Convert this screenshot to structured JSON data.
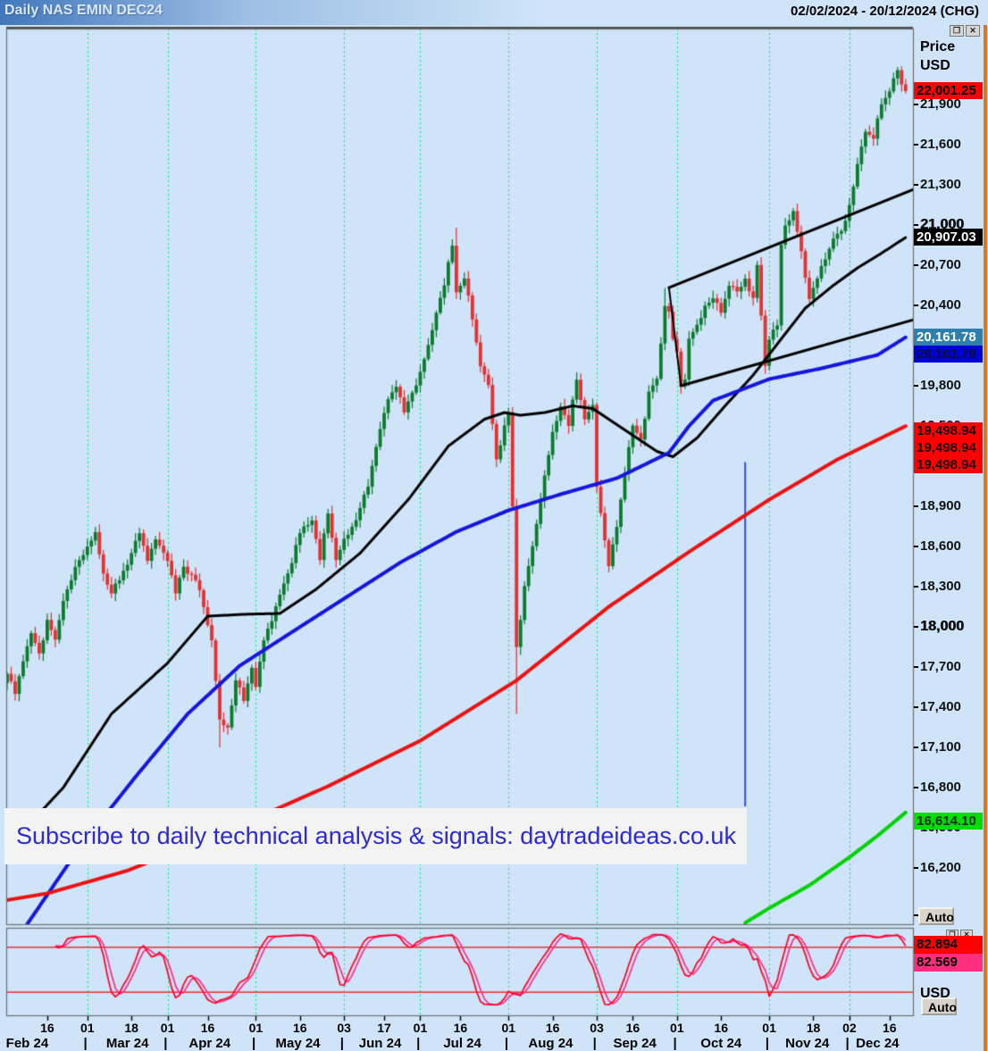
{
  "window": {
    "title": "Daily NAS EMIN DEC24",
    "date_range": "02/02/2024 - 20/12/2024 (CHG)",
    "restore_icon": "❐",
    "close_icon": "✕"
  },
  "price_axis": {
    "header_line1": "Price",
    "header_line2": "USD",
    "tick_max": 21900,
    "tick_min": 16200,
    "tick_step": 300,
    "bold_ticks": [
      21000,
      18000
    ],
    "auto_button": "Auto",
    "markers": [
      {
        "name": "last-price-label",
        "text": "22,001.25",
        "price": 22001.25,
        "bg": "#ff0000",
        "fg": "#000000",
        "dy": 0
      },
      {
        "name": "black-ma-value-label",
        "text": "20,907.03",
        "price": 20907.03,
        "bg": "#000000",
        "fg": "#ffffff",
        "dy": 0
      },
      {
        "name": "teal-value-label",
        "text": "20,161.78",
        "price": 20161.78,
        "bg": "#2d7fae",
        "fg": "#ffffff",
        "dy": 0
      },
      {
        "name": "blue-ma-value-label",
        "text": "20,161.78",
        "price": 20161.78,
        "bg": "#0000d6",
        "fg": "#0a1035",
        "dy": 19
      },
      {
        "name": "red-ma-value-label-1",
        "text": "19,498.94",
        "price": 19498.94,
        "bg": "#ff0000",
        "fg": "#200000",
        "dy": 5
      },
      {
        "name": "red-ma-value-label-2",
        "text": "19,498.94",
        "price": 19498.94,
        "bg": "#ff0000",
        "fg": "#200000",
        "dy": 24
      },
      {
        "name": "red-ma-value-label-3",
        "text": "19,498.94",
        "price": 19498.94,
        "bg": "#ff0000",
        "fg": "#200000",
        "dy": 43
      },
      {
        "name": "green-ma-value-label",
        "text": "16,614.10",
        "price": 16614.1,
        "bg": "#00dd00",
        "fg": "#003000",
        "dy": 10
      }
    ]
  },
  "stoch_axis": {
    "values": [
      {
        "name": "stoch-k-value",
        "text": "82.894",
        "bg": "#ff0000",
        "fg": "#000000"
      },
      {
        "name": "stoch-d-value",
        "text": "82.569",
        "bg": "#ff2d7d",
        "fg": "#000000"
      }
    ],
    "unit_label": "USD",
    "auto_button": "Auto"
  },
  "banner": {
    "text": "Subscribe to daily technical analysis & signals: daytradeideas.co.uk"
  },
  "x_axis": {
    "separator": "|",
    "ticks": [
      {
        "label": "16",
        "index": 10
      },
      {
        "label": "01",
        "index": 20
      },
      {
        "label": "18",
        "index": 31
      },
      {
        "label": "01",
        "index": 40
      },
      {
        "label": "16",
        "index": 50
      },
      {
        "label": "01",
        "index": 62
      },
      {
        "label": "16",
        "index": 73
      },
      {
        "label": "03",
        "index": 84
      },
      {
        "label": "17",
        "index": 94
      },
      {
        "label": "01",
        "index": 103
      },
      {
        "label": "16",
        "index": 113
      },
      {
        "label": "01",
        "index": 125
      },
      {
        "label": "16",
        "index": 136
      },
      {
        "label": "03",
        "index": 147
      },
      {
        "label": "16",
        "index": 156
      },
      {
        "label": "01",
        "index": 167
      },
      {
        "label": "16",
        "index": 178
      },
      {
        "label": "01",
        "index": 190
      },
      {
        "label": "18",
        "index": 201
      },
      {
        "label": "02",
        "index": 210
      },
      {
        "label": "16",
        "index": 220
      }
    ],
    "months": [
      {
        "label": "Feb 24",
        "index": 5
      },
      {
        "label": "Mar 24",
        "index": 30
      },
      {
        "label": "Apr 24",
        "index": 50.5
      },
      {
        "label": "May 24",
        "index": 72.5
      },
      {
        "label": "Jun 24",
        "index": 93
      },
      {
        "label": "Jul 24",
        "index": 113.5
      },
      {
        "label": "Aug 24",
        "index": 135.5
      },
      {
        "label": "Sep 24",
        "index": 156.5
      },
      {
        "label": "Oct 24",
        "index": 178
      },
      {
        "label": "Nov 24",
        "index": 199.5
      },
      {
        "label": "Dec 24",
        "index": 217
      }
    ],
    "separator_indices": [
      19.5,
      39.5,
      61.5,
      83.5,
      102.5,
      124.5,
      146.5,
      166.5,
      189.5,
      209.5
    ]
  },
  "chart_data": {
    "type": "candlestick",
    "title": "Daily NAS EMIN DEC24",
    "instrument": "NAS EMIN DEC24",
    "period": "Daily",
    "date_start": "02/02/2024",
    "date_end": "20/12/2024",
    "bars": 225,
    "ylim": [
      15780,
      22467
    ],
    "last_close": 22001.25,
    "up_color": "#0b7b2e",
    "down_color": "#e23232",
    "grid_color": "#00e57a",
    "grid_month_indices": [
      20,
      40,
      62,
      84,
      103,
      125,
      147,
      167,
      190,
      210
    ],
    "close_keypoints": [
      [
        0,
        17650
      ],
      [
        2,
        17500
      ],
      [
        4,
        17750
      ],
      [
        6,
        17950
      ],
      [
        8,
        17800
      ],
      [
        10,
        18050
      ],
      [
        12,
        17900
      ],
      [
        14,
        18200
      ],
      [
        16,
        18350
      ],
      [
        18,
        18500
      ],
      [
        20,
        18600
      ],
      [
        22,
        18700
      ],
      [
        24,
        18400
      ],
      [
        26,
        18250
      ],
      [
        28,
        18350
      ],
      [
        31,
        18550
      ],
      [
        33,
        18700
      ],
      [
        35,
        18500
      ],
      [
        37,
        18650
      ],
      [
        40,
        18500
      ],
      [
        42,
        18250
      ],
      [
        44,
        18450
      ],
      [
        47,
        18350
      ],
      [
        49,
        18150
      ],
      [
        51,
        17900
      ],
      [
        53,
        17300
      ],
      [
        55,
        17250
      ],
      [
        57,
        17600
      ],
      [
        59,
        17450
      ],
      [
        61,
        17700
      ],
      [
        62,
        17550
      ],
      [
        64,
        17900
      ],
      [
        67,
        18150
      ],
      [
        70,
        18400
      ],
      [
        73,
        18700
      ],
      [
        76,
        18800
      ],
      [
        78,
        18500
      ],
      [
        80,
        18850
      ],
      [
        82,
        18500
      ],
      [
        84,
        18650
      ],
      [
        87,
        18800
      ],
      [
        90,
        19050
      ],
      [
        92,
        19350
      ],
      [
        95,
        19700
      ],
      [
        97,
        19800
      ],
      [
        99,
        19600
      ],
      [
        101,
        19750
      ],
      [
        103,
        19900
      ],
      [
        105,
        20100
      ],
      [
        107,
        20350
      ],
      [
        109,
        20550
      ],
      [
        111,
        20850
      ],
      [
        112,
        20500
      ],
      [
        114,
        20600
      ],
      [
        116,
        20300
      ],
      [
        118,
        19950
      ],
      [
        120,
        19800
      ],
      [
        122,
        19250
      ],
      [
        124,
        19500
      ],
      [
        125,
        19600
      ],
      [
        126,
        18900
      ],
      [
        127,
        17850
      ],
      [
        129,
        18300
      ],
      [
        131,
        18600
      ],
      [
        133,
        18950
      ],
      [
        136,
        19450
      ],
      [
        138,
        19650
      ],
      [
        140,
        19500
      ],
      [
        142,
        19850
      ],
      [
        144,
        19550
      ],
      [
        146,
        19650
      ],
      [
        147,
        19050
      ],
      [
        149,
        18650
      ],
      [
        150,
        18450
      ],
      [
        152,
        18750
      ],
      [
        154,
        19150
      ],
      [
        156,
        19500
      ],
      [
        158,
        19400
      ],
      [
        160,
        19750
      ],
      [
        162,
        19850
      ],
      [
        164,
        20400
      ],
      [
        165,
        20350
      ],
      [
        166,
        20150
      ],
      [
        167,
        20050
      ],
      [
        168,
        19800
      ],
      [
        169,
        19850
      ],
      [
        170,
        20150
      ],
      [
        172,
        20250
      ],
      [
        174,
        20400
      ],
      [
        176,
        20450
      ],
      [
        178,
        20350
      ],
      [
        180,
        20550
      ],
      [
        182,
        20500
      ],
      [
        184,
        20600
      ],
      [
        186,
        20450
      ],
      [
        187,
        20700
      ],
      [
        189,
        19950
      ],
      [
        190,
        20150
      ],
      [
        192,
        20250
      ],
      [
        193,
        20850
      ],
      [
        194,
        21000
      ],
      [
        196,
        21100
      ],
      [
        198,
        20800
      ],
      [
        200,
        20450
      ],
      [
        202,
        20600
      ],
      [
        204,
        20750
      ],
      [
        206,
        20900
      ],
      [
        208,
        20950
      ],
      [
        210,
        21150
      ],
      [
        212,
        21450
      ],
      [
        214,
        21700
      ],
      [
        216,
        21650
      ],
      [
        218,
        21900
      ],
      [
        220,
        22000
      ],
      [
        221,
        22100
      ],
      [
        222,
        22150
      ],
      [
        223,
        22050
      ],
      [
        224,
        22001.25
      ]
    ],
    "wick_overrides": {
      "53": {
        "low": 17100
      },
      "112": {
        "high": 20980
      },
      "127": {
        "low": 17350
      },
      "164": {
        "high": 20530
      },
      "222": {
        "high": 22180
      }
    },
    "moving_averages": [
      {
        "name": "sma-black",
        "color": "#000000",
        "width": 3,
        "points": [
          [
            0,
            16350
          ],
          [
            14,
            16800
          ],
          [
            26,
            17350
          ],
          [
            40,
            17730
          ],
          [
            50,
            18080
          ],
          [
            60,
            18095
          ],
          [
            68,
            18100
          ],
          [
            77,
            18280
          ],
          [
            88,
            18550
          ],
          [
            100,
            18950
          ],
          [
            110,
            19350
          ],
          [
            119,
            19550
          ],
          [
            124,
            19600
          ],
          [
            128,
            19580
          ],
          [
            134,
            19600
          ],
          [
            141,
            19650
          ],
          [
            146,
            19630
          ],
          [
            152,
            19510
          ],
          [
            157,
            19410
          ],
          [
            162,
            19310
          ],
          [
            166,
            19270
          ],
          [
            172,
            19410
          ],
          [
            179,
            19650
          ],
          [
            186,
            19880
          ],
          [
            193,
            20150
          ],
          [
            199,
            20380
          ],
          [
            206,
            20550
          ],
          [
            212,
            20680
          ],
          [
            218,
            20790
          ],
          [
            224,
            20907.03
          ]
        ]
      },
      {
        "name": "sma-blue",
        "color": "#1616dd",
        "width": 4,
        "points": [
          [
            5,
            15780
          ],
          [
            18,
            16350
          ],
          [
            32,
            16880
          ],
          [
            45,
            17350
          ],
          [
            58,
            17710
          ],
          [
            72,
            17980
          ],
          [
            85,
            18230
          ],
          [
            98,
            18480
          ],
          [
            112,
            18710
          ],
          [
            125,
            18870
          ],
          [
            138,
            18990
          ],
          [
            152,
            19110
          ],
          [
            165,
            19300
          ],
          [
            170,
            19500
          ],
          [
            176,
            19690
          ],
          [
            190,
            19850
          ],
          [
            203,
            19930
          ],
          [
            217,
            20030
          ],
          [
            224,
            20161.78
          ]
        ]
      },
      {
        "name": "sma-red",
        "color": "#ee1111",
        "width": 4,
        "points": [
          [
            0,
            15960
          ],
          [
            10,
            16010
          ],
          [
            30,
            16180
          ],
          [
            55,
            16480
          ],
          [
            80,
            16810
          ],
          [
            103,
            17150
          ],
          [
            127,
            17600
          ],
          [
            150,
            18150
          ],
          [
            170,
            18560
          ],
          [
            190,
            18950
          ],
          [
            207,
            19250
          ],
          [
            224,
            19498.94
          ]
        ]
      },
      {
        "name": "sma-green",
        "color": "#00d300",
        "width": 4,
        "points": [
          [
            184,
            15790
          ],
          [
            190,
            15900
          ],
          [
            200,
            16070
          ],
          [
            210,
            16280
          ],
          [
            217,
            16440
          ],
          [
            224,
            16614.1
          ]
        ]
      }
    ],
    "trendlines": [
      {
        "name": "upper-channel-line",
        "from": [
          165,
          20533
        ],
        "to": [
          226,
          21267
        ],
        "color": "#000000",
        "width": 3
      },
      {
        "name": "lower-channel-line",
        "from": [
          168,
          19800
        ],
        "to": [
          226,
          20293
        ],
        "color": "#000000",
        "width": 3
      },
      {
        "name": "channel-left-edge",
        "from": [
          165,
          20533
        ],
        "to": [
          168,
          19800
        ],
        "color": "#000000",
        "width": 2
      }
    ],
    "annotations": [
      {
        "type": "vline",
        "name": "vertical-marker-line",
        "index": 184,
        "price_from": 19230,
        "price_to": 16660,
        "color": "#3a50d9",
        "width": 2
      }
    ],
    "stochastic": {
      "type": "line",
      "period": 10,
      "smooth": 3,
      "line1_name": "stoch-k",
      "line2_name": "stoch-d",
      "line1_color": "#ff0022",
      "line2_color": "#ff2d8a",
      "ref_high": 80,
      "ref_low": 20,
      "ref_color": "#e21212",
      "ylim": [
        0,
        100
      ],
      "last_values": [
        82.894,
        82.569
      ]
    }
  }
}
